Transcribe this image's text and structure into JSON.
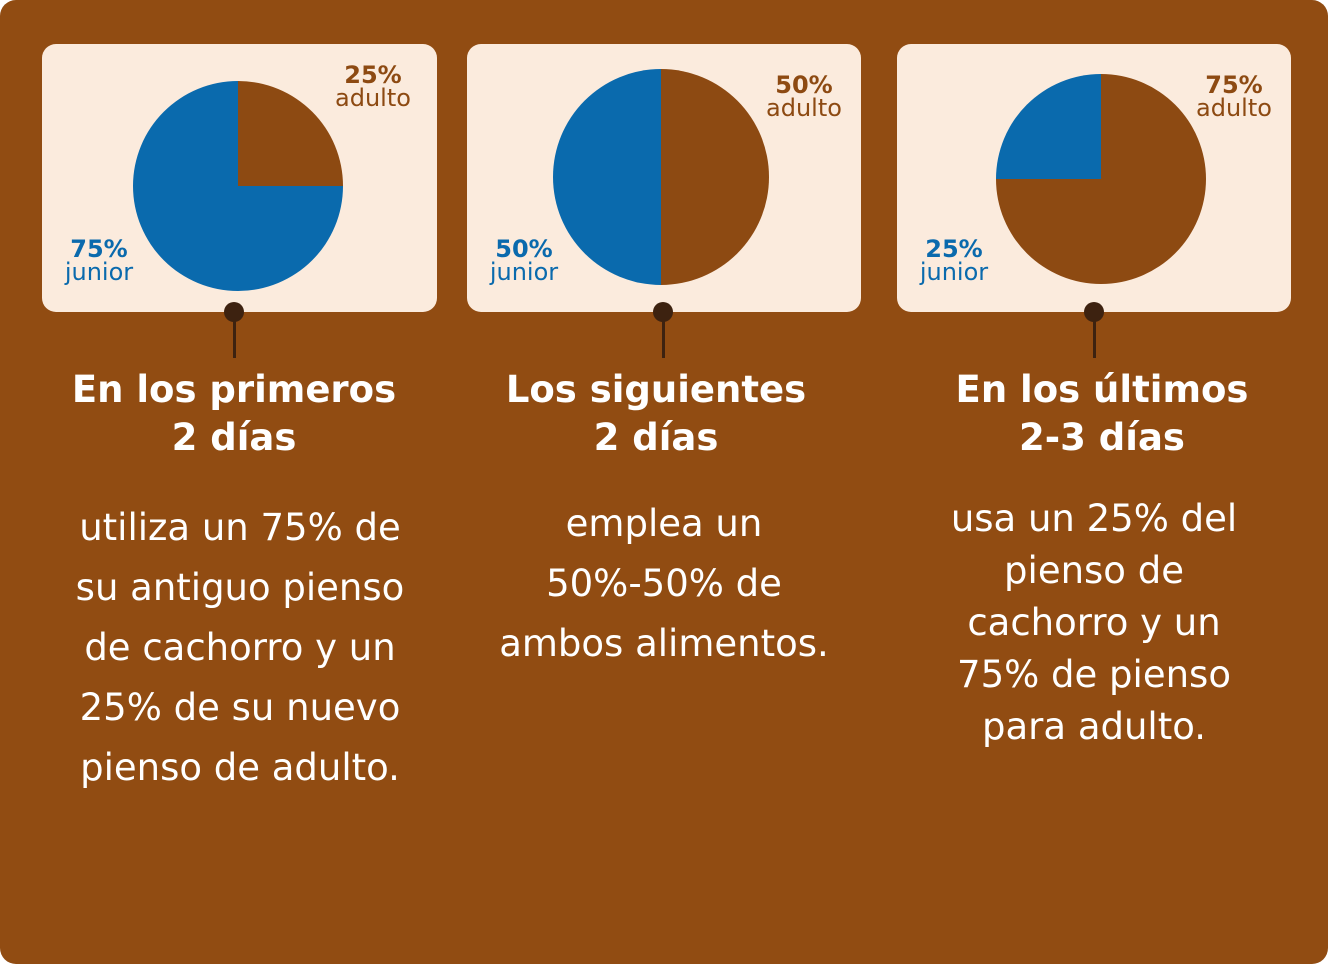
{
  "colors": {
    "background": "#914c12",
    "card": "#fbebdd",
    "junior": "#0a6aad",
    "adulto": "#8d4a12",
    "pin": "#3d2210",
    "text": "#ffffff"
  },
  "chart_data": [
    {
      "type": "pie",
      "slices": [
        {
          "label": "adulto",
          "percent_label": "25%",
          "value": 25
        },
        {
          "label": "junior",
          "percent_label": "75%",
          "value": 75
        }
      ]
    },
    {
      "type": "pie",
      "slices": [
        {
          "label": "adulto",
          "percent_label": "50%",
          "value": 50
        },
        {
          "label": "junior",
          "percent_label": "50%",
          "value": 50
        }
      ]
    },
    {
      "type": "pie",
      "slices": [
        {
          "label": "adulto",
          "percent_label": "75%",
          "value": 75
        },
        {
          "label": "junior",
          "percent_label": "25%",
          "value": 25
        }
      ]
    }
  ],
  "steps": [
    {
      "heading": "En los primeros\n2 días",
      "text": "utiliza un 75% de\nsu antiguo pienso\nde cachorro y un\n25% de su nuevo\npienso de adulto."
    },
    {
      "heading": "Los siguientes\n2 días",
      "text": "emplea un\n50%-50% de\nambos alimentos."
    },
    {
      "heading": "En los últimos\n2-3 días",
      "text": "usa un 25% del\npienso de\ncachorro y un\n75% de pienso\npara adulto."
    }
  ]
}
